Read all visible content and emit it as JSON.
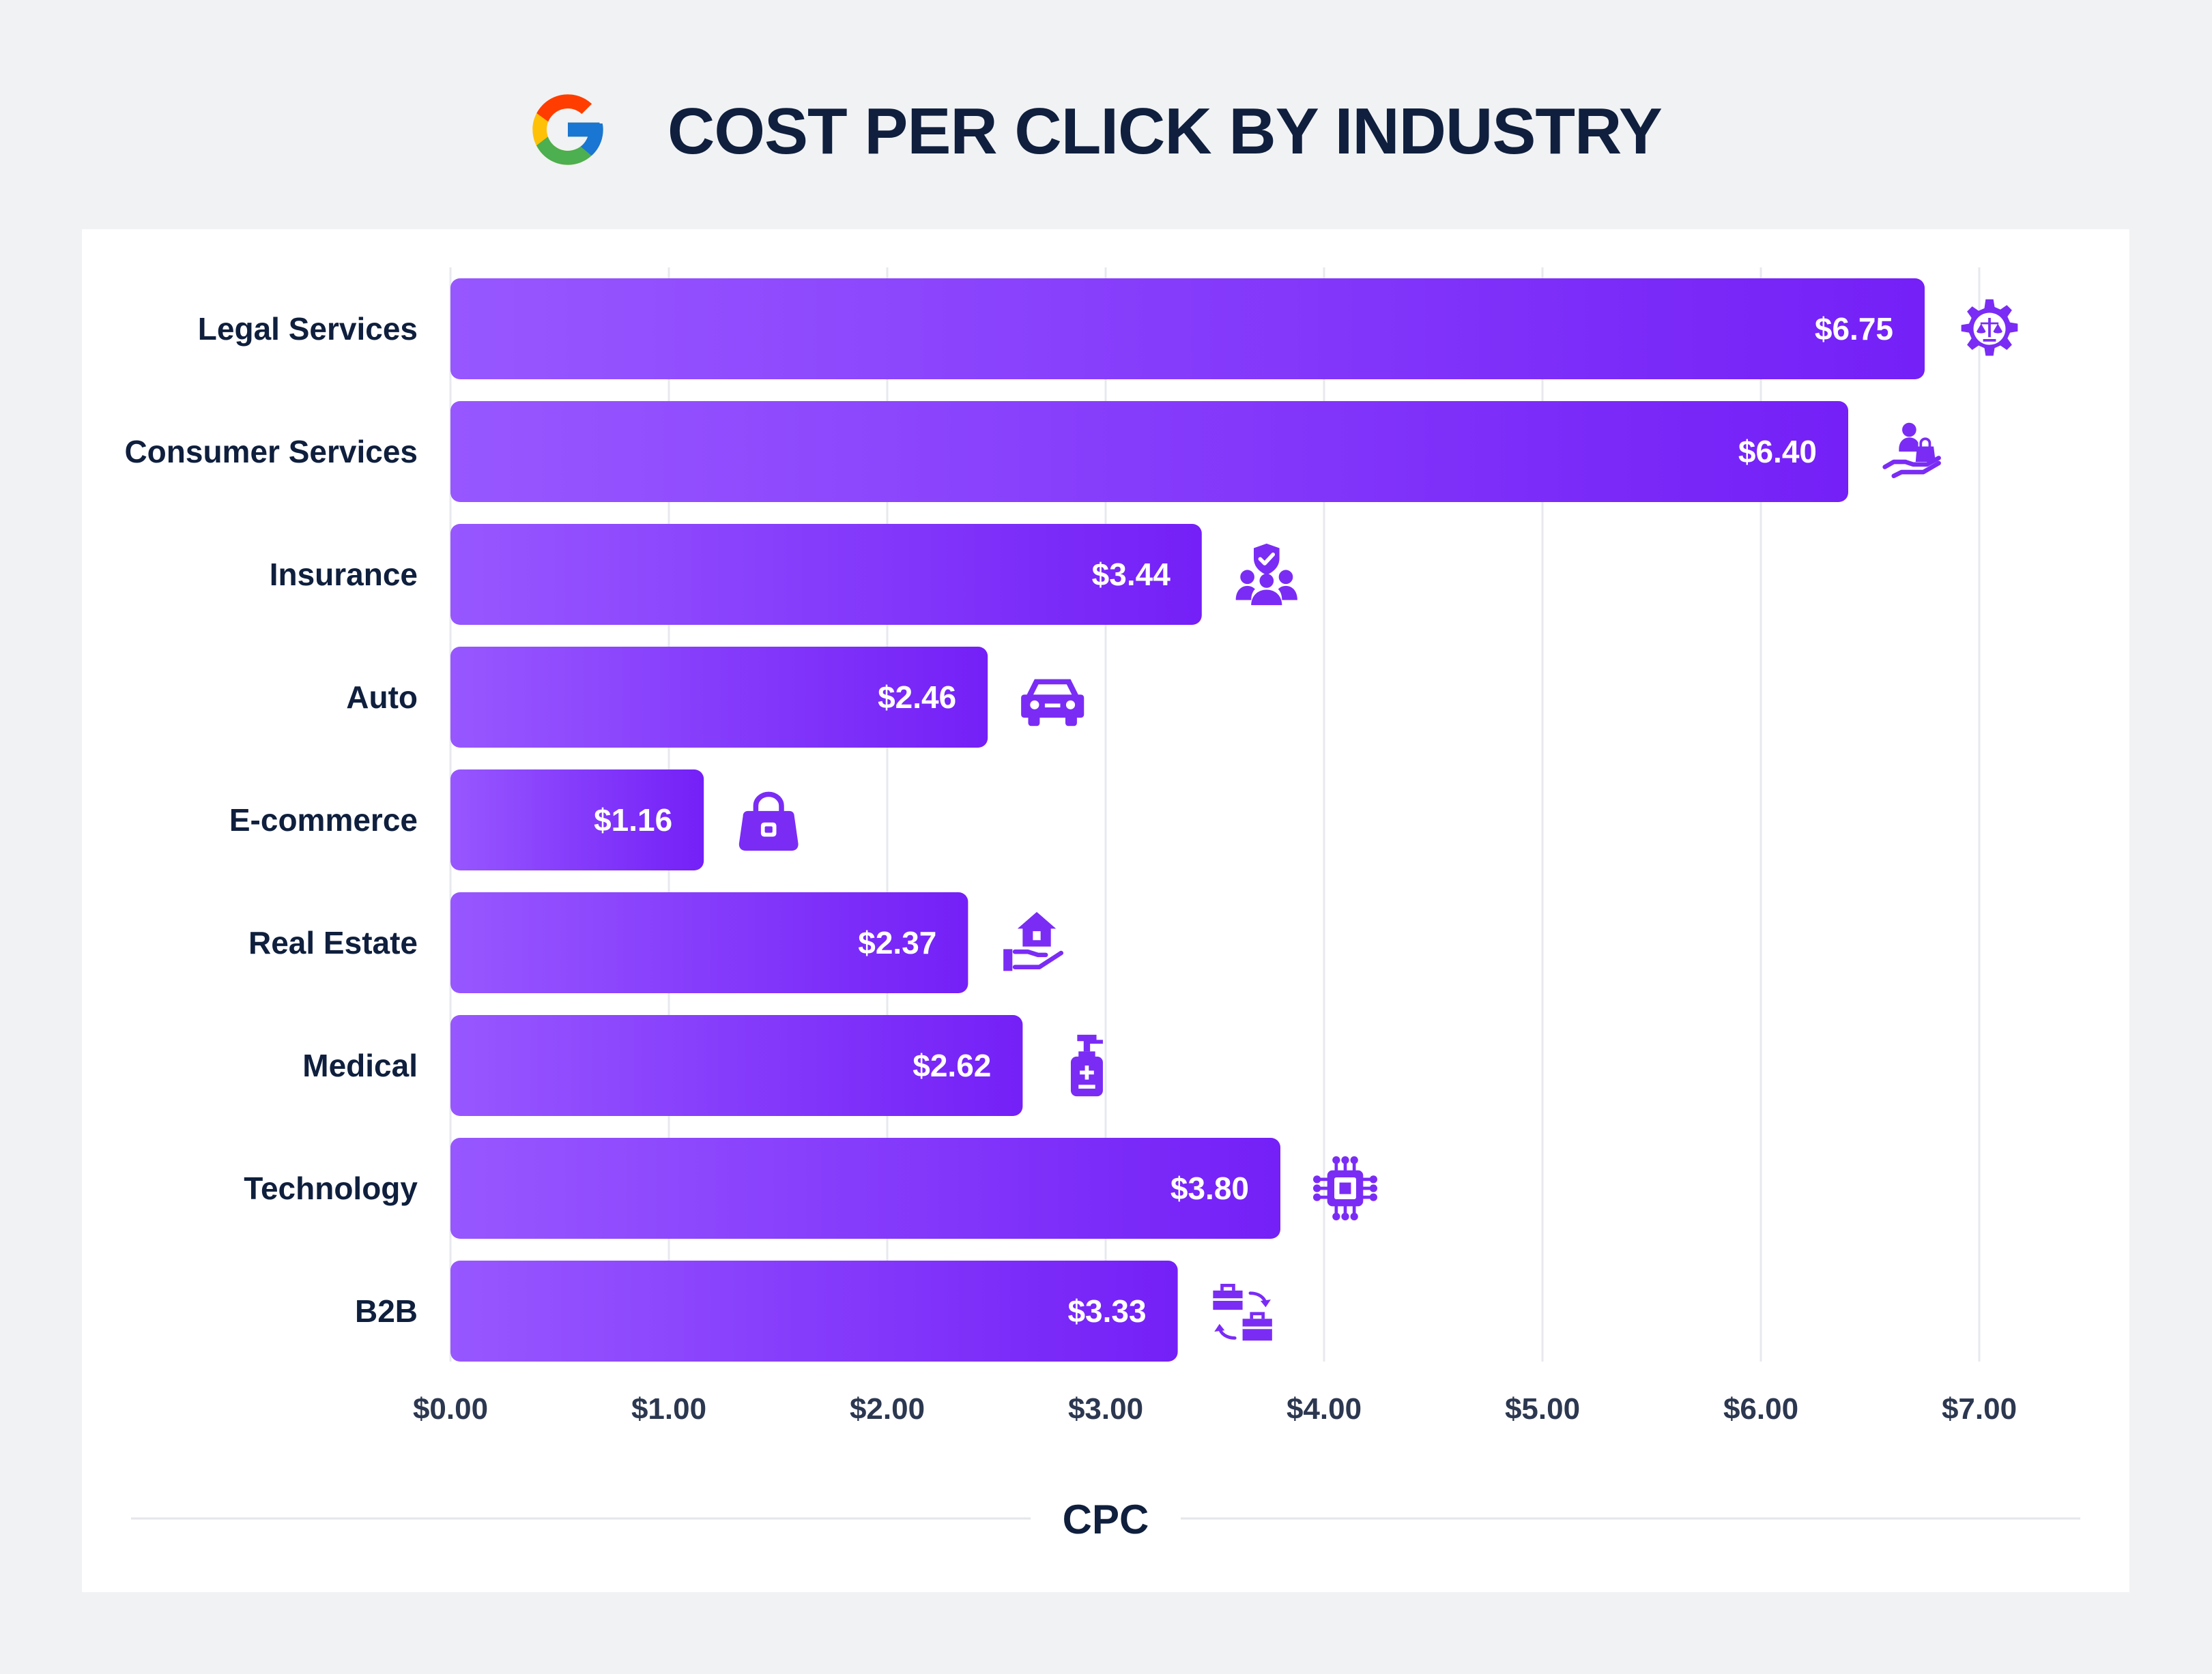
{
  "header": {
    "title": "COST PER CLICK BY INDUSTRY",
    "logo_icon": "google-logo-icon"
  },
  "colors": {
    "background": "#f1f2f4",
    "card": "#ffffff",
    "bar_gradient_start": "#9757ff",
    "bar_gradient_end": "#7420f7",
    "icon": "#7a2cf5",
    "text_dark": "#0f1f3d",
    "grid": "#e7e9ee"
  },
  "chart_data": {
    "type": "bar",
    "orientation": "horizontal",
    "title": "COST PER CLICK BY INDUSTRY",
    "xlabel": "CPC",
    "ylabel": "",
    "xlim": [
      0,
      7
    ],
    "x_ticks": [
      0,
      1,
      2,
      3,
      4,
      5,
      6,
      7
    ],
    "x_tick_labels": [
      "$0.00",
      "$1.00",
      "$2.00",
      "$3.00",
      "$4.00",
      "$5.00",
      "$6.00",
      "$7.00"
    ],
    "grid": "vertical",
    "legend": "none",
    "categories": [
      "Legal Services",
      "Consumer Services",
      "Insurance",
      "Auto",
      "E-commerce",
      "Real Estate",
      "Medical",
      "Technology",
      "B2B"
    ],
    "values": [
      6.75,
      6.4,
      3.44,
      2.46,
      1.16,
      2.37,
      2.62,
      3.8,
      3.33
    ],
    "value_labels": [
      "$6.75",
      "$6.40",
      "$3.44",
      "$2.46",
      "$1.16",
      "$2.37",
      "$2.62",
      "$3.80",
      "$3.33"
    ],
    "icons": [
      "law-gear-icon",
      "hand-shopping-icon",
      "insured-people-icon",
      "car-icon",
      "handbag-icon",
      "hand-house-icon",
      "sanitizer-bottle-icon",
      "circuit-chip-icon",
      "briefcase-exchange-icon"
    ]
  }
}
